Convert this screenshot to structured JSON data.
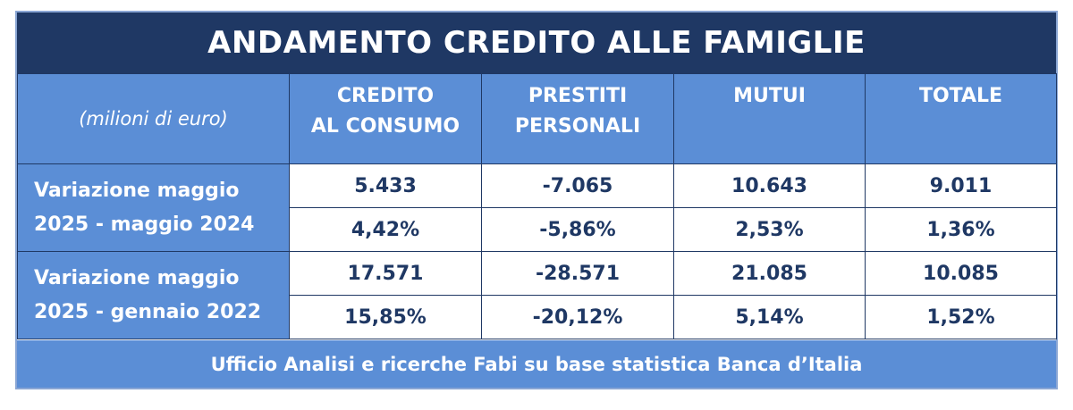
{
  "title": "ANDAMENTO CREDITO ALLE FAMIGLIE",
  "unit_label": "(milioni di euro)",
  "columns": [
    {
      "line1": "CREDITO",
      "line2": "AL CONSUMO"
    },
    {
      "line1": "PRESTITI",
      "line2": "PERSONALI"
    },
    {
      "line1": "MUTUI",
      "line2": ""
    },
    {
      "line1": "TOTALE",
      "line2": ""
    }
  ],
  "groups": [
    {
      "label_line1": "Variazione maggio",
      "label_line2": "2025 - maggio 2024",
      "rows": [
        [
          "5.433",
          "-7.065",
          "10.643",
          "9.011"
        ],
        [
          "4,42%",
          "-5,86%",
          "2,53%",
          "1,36%"
        ]
      ]
    },
    {
      "label_line1": "Variazione maggio",
      "label_line2": "2025 - gennaio 2022",
      "rows": [
        [
          "17.571",
          "-28.571",
          "21.085",
          "10.085"
        ],
        [
          "15,85%",
          "-20,12%",
          "5,14%",
          "1,52%"
        ]
      ]
    }
  ],
  "footer": "Ufficio Analisi e ricerche Fabi su base statistica Banca d’Italia",
  "colors": {
    "title_bg": "#1f3864",
    "header_bg": "#5b8ed6",
    "value_text": "#1f3864"
  }
}
